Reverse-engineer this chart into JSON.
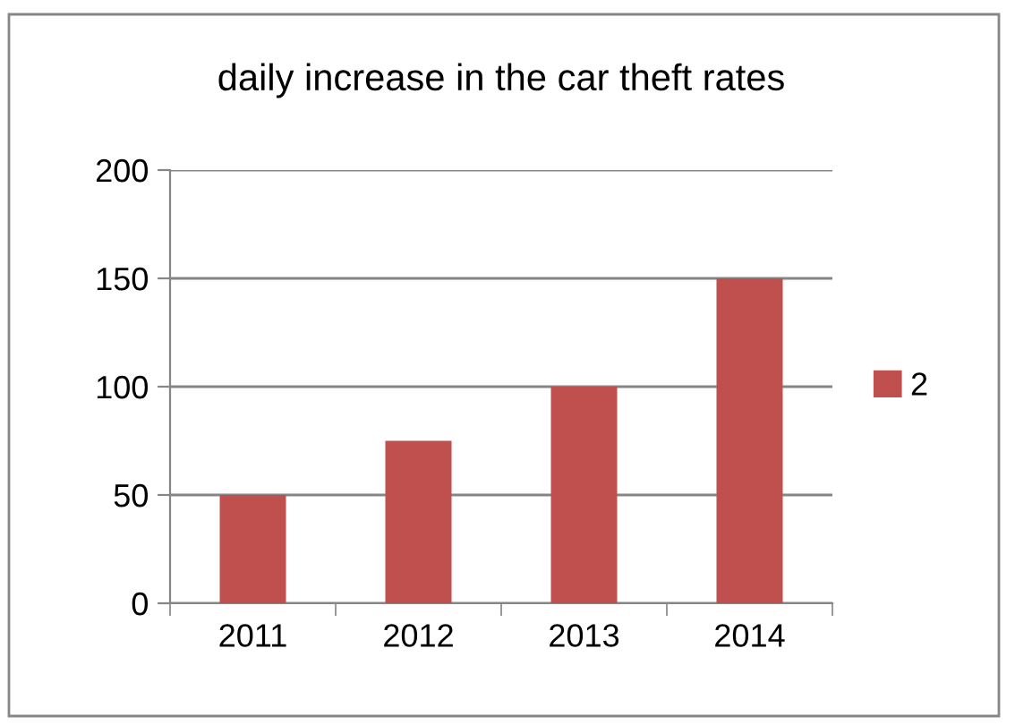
{
  "chart_data": {
    "type": "bar",
    "title": "daily increase in the car theft rates",
    "categories": [
      "2011",
      "2012",
      "2013",
      "2014"
    ],
    "series": [
      {
        "name": "2",
        "color": "#c0504d",
        "values": [
          50,
          75,
          100,
          150
        ]
      }
    ],
    "ylim": [
      0,
      200
    ],
    "yticks": [
      0,
      50,
      100,
      150,
      200
    ],
    "grid": "y",
    "legend": "right"
  }
}
